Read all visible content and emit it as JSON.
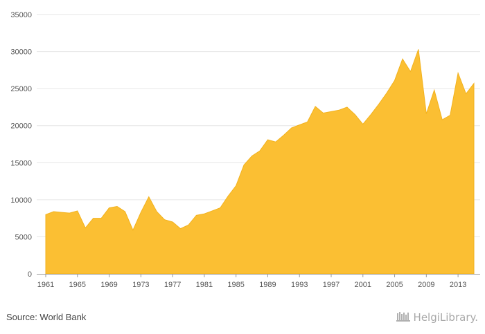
{
  "source_text": "Source: World Bank",
  "brand_text": "HelgiLibrary.",
  "brand_icon": "bookshelf-icon",
  "colors": {
    "area_fill": "#fbbf33",
    "area_stroke": "#f2b21e",
    "grid": "#e6e6e6",
    "axis": "#999999"
  },
  "chart_data": {
    "type": "area",
    "title": "",
    "xlabel": "",
    "ylabel": "",
    "ylim": [
      0,
      35000
    ],
    "yticks": [
      0,
      5000,
      10000,
      15000,
      20000,
      25000,
      30000,
      35000
    ],
    "xticks": [
      1961,
      1965,
      1969,
      1973,
      1977,
      1981,
      1985,
      1989,
      1993,
      1997,
      2001,
      2005,
      2009,
      2013
    ],
    "grid": true,
    "legend": "none",
    "x": [
      1961,
      1962,
      1963,
      1964,
      1965,
      1966,
      1967,
      1968,
      1969,
      1970,
      1971,
      1972,
      1973,
      1974,
      1975,
      1976,
      1977,
      1978,
      1979,
      1980,
      1981,
      1982,
      1983,
      1984,
      1985,
      1986,
      1987,
      1988,
      1989,
      1990,
      1991,
      1992,
      1993,
      1994,
      1995,
      1996,
      1997,
      1998,
      1999,
      2000,
      2001,
      2002,
      2003,
      2004,
      2005,
      2006,
      2007,
      2008,
      2009,
      2010,
      2011,
      2012,
      2013,
      2014,
      2015
    ],
    "series": [
      {
        "values": [
          8000,
          8400,
          8300,
          8200,
          8500,
          6200,
          7500,
          7500,
          8900,
          9100,
          8400,
          5900,
          8300,
          10400,
          8400,
          7300,
          7000,
          6100,
          6600,
          7900,
          8100,
          8500,
          8900,
          10500,
          11900,
          14700,
          15900,
          16600,
          18100,
          17800,
          18700,
          19700,
          20100,
          20500,
          22600,
          21700,
          21900,
          22100,
          22500,
          21500,
          20200,
          21500,
          22900,
          24400,
          26100,
          29000,
          27300,
          30300,
          21600,
          24800,
          20800,
          21400,
          27100,
          24300,
          25700
        ]
      }
    ]
  }
}
